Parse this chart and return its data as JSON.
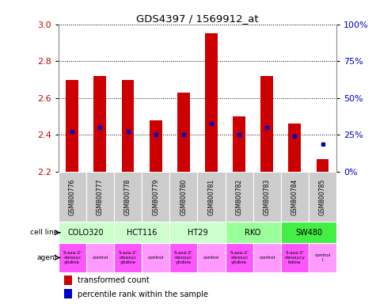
{
  "title": "GDS4397 / 1569912_at",
  "samples": [
    "GSM800776",
    "GSM800777",
    "GSM800778",
    "GSM800779",
    "GSM800780",
    "GSM800781",
    "GSM800782",
    "GSM800783",
    "GSM800784",
    "GSM800785"
  ],
  "transformed_count": [
    2.7,
    2.72,
    2.7,
    2.48,
    2.63,
    2.95,
    2.5,
    2.72,
    2.46,
    2.27
  ],
  "bar_bottom": 2.2,
  "percentile_y": [
    2.42,
    2.44,
    2.42,
    2.4,
    2.4,
    2.46,
    2.4,
    2.44,
    2.395,
    2.35
  ],
  "ylim": [
    2.2,
    3.0
  ],
  "yticks_left": [
    2.2,
    2.4,
    2.6,
    2.8,
    3.0
  ],
  "yticks_right_pct": [
    0,
    25,
    50,
    75,
    100
  ],
  "cell_lines": [
    {
      "name": "COLO320",
      "start": 0,
      "end": 2,
      "color": "#ccffcc"
    },
    {
      "name": "HCT116",
      "start": 2,
      "end": 4,
      "color": "#ccffcc"
    },
    {
      "name": "HT29",
      "start": 4,
      "end": 6,
      "color": "#ccffcc"
    },
    {
      "name": "RKO",
      "start": 6,
      "end": 8,
      "color": "#99ff99"
    },
    {
      "name": "SW480",
      "start": 8,
      "end": 10,
      "color": "#44ee44"
    }
  ],
  "agent_names": [
    "5-aza-2'\n-deoxyc\nytidine",
    "control",
    "5-aza-2'\n-deoxyc\nytidine",
    "control",
    "5-aza-2'\n-deoxyc\nytidine",
    "control",
    "5-aza-2'\n-deoxyc\nytidine",
    "control",
    "5-aza-2'\n-deoxycy\ntidine",
    "control\nl"
  ],
  "agent_colors": [
    "#ff55ff",
    "#ff99ff",
    "#ff55ff",
    "#ff99ff",
    "#ff55ff",
    "#ff99ff",
    "#ff55ff",
    "#ff99ff",
    "#ff55ff",
    "#ff99ff"
  ],
  "bar_color": "#cc0000",
  "dot_color": "#0000cc",
  "sample_bg_color": "#cccccc",
  "ylabel_left_color": "#cc0000",
  "ylabel_right_color": "#0000cc",
  "legend_red_label": "transformed count",
  "legend_blue_label": "percentile rank within the sample",
  "cell_line_label": "cell line",
  "agent_label": "agent"
}
